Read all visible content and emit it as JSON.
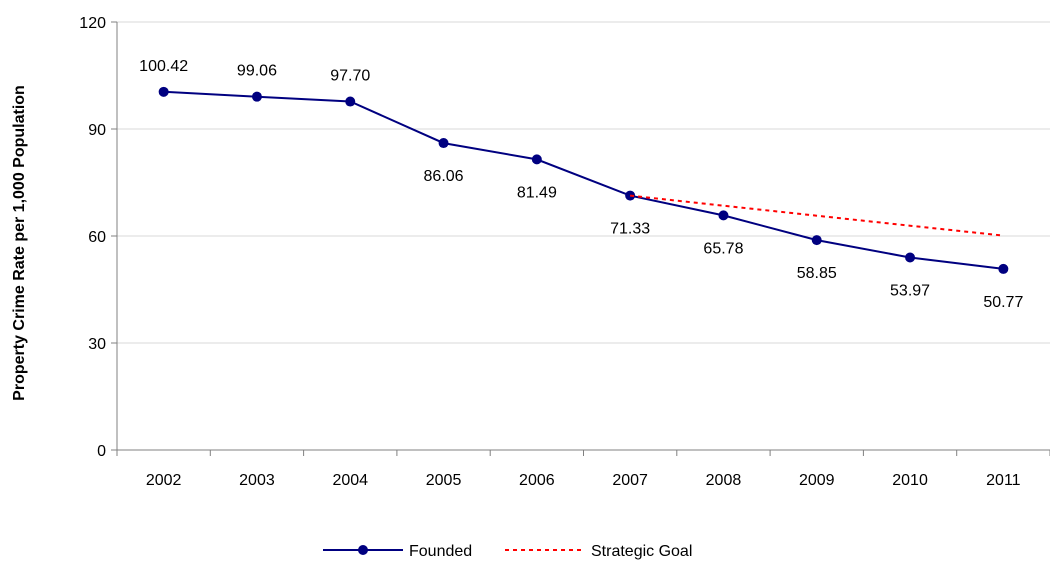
{
  "chart_data": {
    "type": "line",
    "title": "",
    "xlabel": "",
    "ylabel": "Property Crime Rate per 1,000 Population",
    "categories": [
      "2002",
      "2003",
      "2004",
      "2005",
      "2006",
      "2007",
      "2008",
      "2009",
      "2010",
      "2011"
    ],
    "ylim": [
      0,
      120
    ],
    "yticks": [
      "0",
      "30",
      "60",
      "90",
      "120"
    ],
    "grid": true,
    "legend_position": "bottom",
    "series": [
      {
        "name": "Founded",
        "color": "#000080",
        "style": "solid-with-markers",
        "values": [
          100.42,
          99.06,
          97.7,
          86.06,
          81.49,
          71.33,
          65.78,
          58.85,
          53.97,
          50.77
        ],
        "labels": [
          "100.42",
          "99.06",
          "97.70",
          "86.06",
          "81.49",
          "71.33",
          "65.78",
          "58.85",
          "53.97",
          "50.77"
        ]
      },
      {
        "name": "Strategic Goal",
        "color": "#ff0000",
        "style": "dotted",
        "values": [
          null,
          null,
          null,
          null,
          null,
          71.33,
          68.5,
          65.7,
          62.9,
          60.1
        ]
      }
    ]
  }
}
